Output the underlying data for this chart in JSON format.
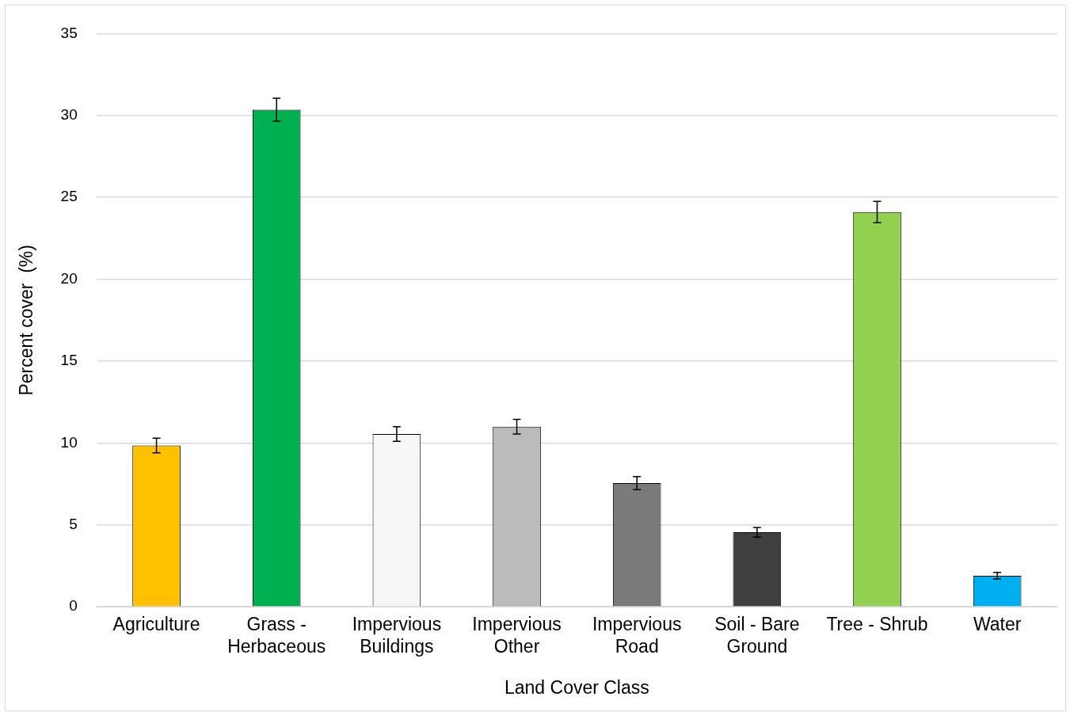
{
  "chart_data": {
    "type": "bar",
    "xlabel": "Land Cover Class",
    "ylabel": "Percent cover  (%)",
    "categories": [
      "Agriculture",
      "Grass - Herbaceous",
      "Impervious Buildings",
      "Impervious Other",
      "Impervious Road",
      "Soil - Bare Ground",
      "Tree - Shrub",
      "Water"
    ],
    "values": [
      9.85,
      30.35,
      10.55,
      11.0,
      7.55,
      4.55,
      24.1,
      1.9
    ],
    "errors": [
      0.45,
      0.7,
      0.45,
      0.45,
      0.4,
      0.3,
      0.65,
      0.2
    ],
    "colors": [
      "#ffc000",
      "#00b050",
      "#f7f7f7",
      "#bababa",
      "#7a7a7a",
      "#3f3f3f",
      "#92d050",
      "#00b0f0"
    ],
    "ylim": [
      0,
      35
    ],
    "yticks": [
      0,
      5,
      10,
      15,
      20,
      25,
      30,
      35
    ],
    "grid": "y",
    "legend": false
  }
}
